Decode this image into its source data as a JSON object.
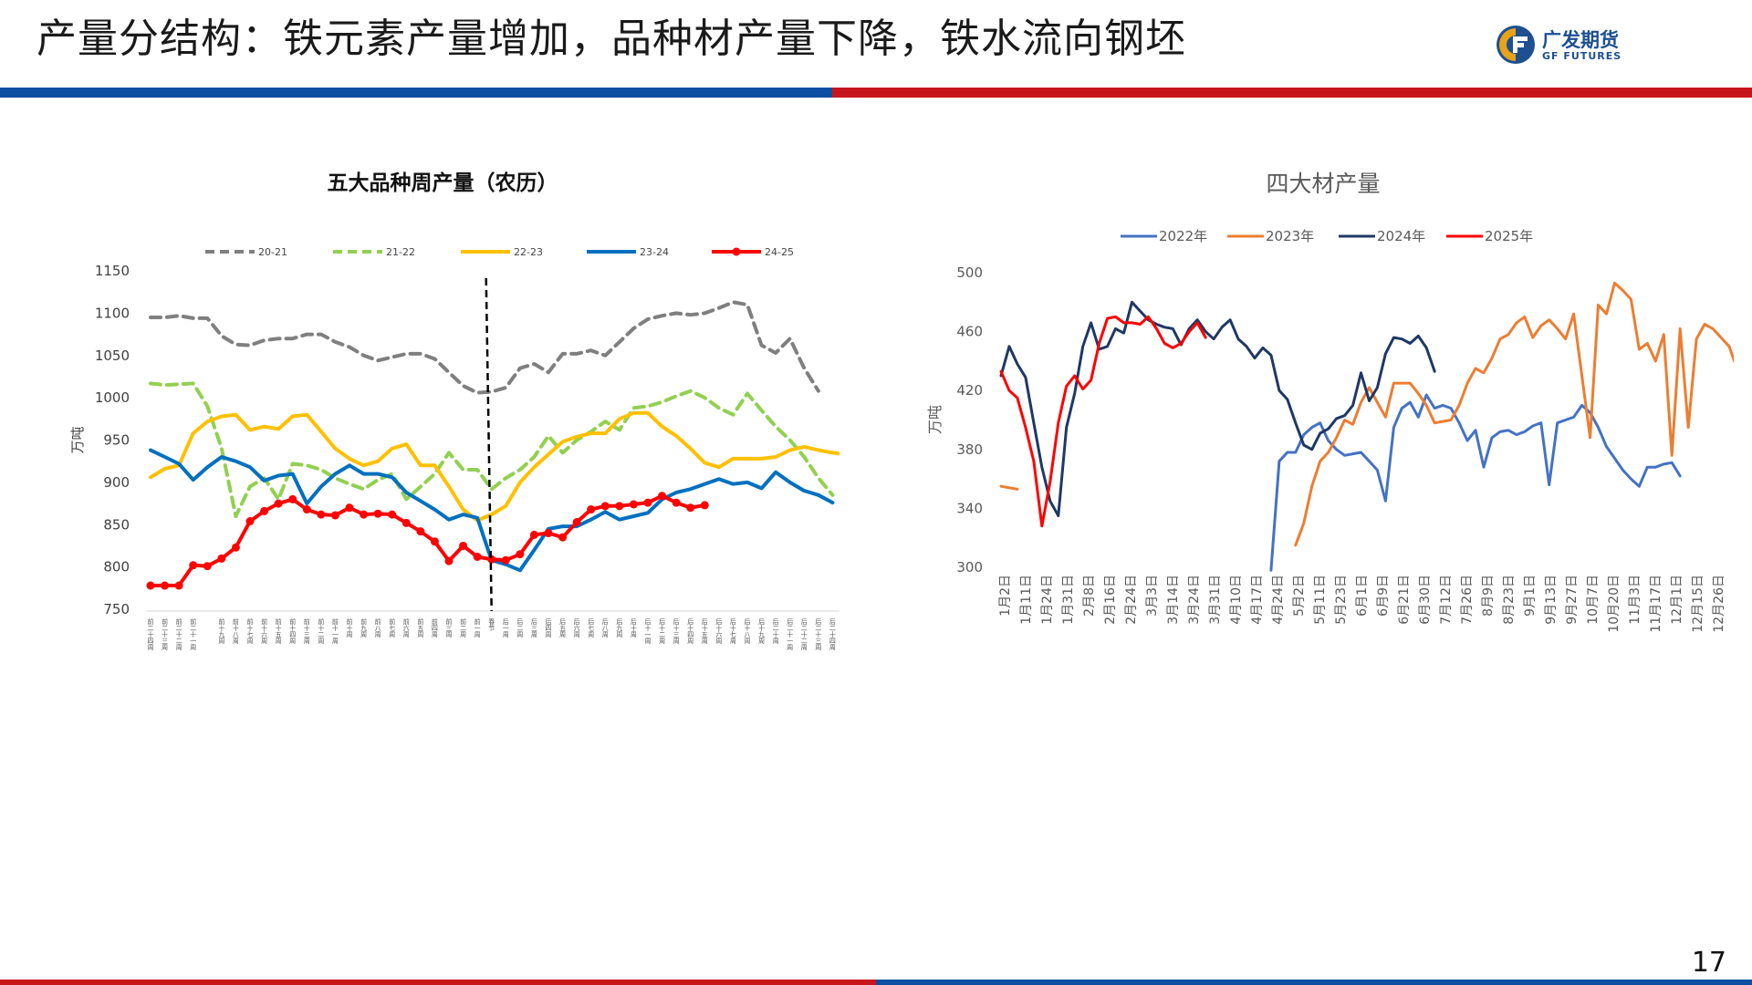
{
  "page": {
    "title": "产量分结构：铁元素产量增加，品种材产量下降，铁水流向钢坯",
    "page_number": "17",
    "logo": {
      "cn": "广发期货",
      "en": "GF FUTURES"
    },
    "colors": {
      "blue": "#0b4ea2",
      "red": "#c8161d"
    }
  },
  "chart_data": [
    {
      "type": "line",
      "title": "五大品种周产量（农历）",
      "ylabel": "万吨",
      "ylim": [
        750,
        1150
      ],
      "yticks": [
        750,
        800,
        850,
        900,
        950,
        1000,
        1050,
        1100,
        1150
      ],
      "categories": [
        "前二十四周",
        "前二十三周",
        "前二十二周",
        "前二十一周",
        "前二十周",
        "前十九周",
        "前十八周",
        "前十七周",
        "前十六周",
        "前十五周",
        "前十四周",
        "前十三周",
        "前十二周",
        "前十一周",
        "前十周",
        "前九周",
        "前八周",
        "前七周",
        "前六周",
        "前五周",
        "前四周",
        "前三周",
        "前二周",
        "前一周",
        "春节",
        "后一周",
        "后二周",
        "后三周",
        "后四周",
        "后五周",
        "后六周",
        "后七周",
        "后八周",
        "后九周",
        "后十周",
        "后十一周",
        "后十二周",
        "后十三周",
        "后十四周",
        "后十五周",
        "后十六周",
        "后十七周",
        "后十八周",
        "后十九周",
        "后二十周",
        "后二十一周",
        "后二十二周",
        "后二十三周",
        "后二十四周",
        "后二十五周"
      ],
      "category_labels_visible": [
        "前二十四周",
        "前二十三周",
        "前二十二周",
        "前二十一周",
        "前十九周",
        "前十八周",
        "前十七周",
        "前十六周",
        "前十五周",
        "前十四周",
        "前十三周",
        "前十二周",
        "前十一周",
        "前十周",
        "前九周",
        "前八周",
        "前七周",
        "前六周",
        "前五周",
        "前四周",
        "前三周",
        "前二周",
        "前一周",
        "春节",
        "后一周",
        "后二周",
        "后三周",
        "后四周",
        "后五周",
        "后六周",
        "后七周",
        "后八周",
        "后九周",
        "后十周",
        "后十一周",
        "后十二周",
        "后十三周",
        "后十四周",
        "后十五周",
        "后十六周",
        "后十七周",
        "后十八周",
        "后十九周",
        "后二十周",
        "后二十一周",
        "后二十二周",
        "后二十三周",
        "后二十四周"
      ],
      "marker_category": "春节",
      "series": [
        {
          "name": "20-21",
          "color": "#7f7f7f",
          "dash": "dash",
          "values": [
            1095,
            1095,
            1097,
            1094,
            1094,
            1073,
            1063,
            1062,
            1068,
            1070,
            1070,
            1075,
            1075,
            1066,
            1060,
            1050,
            1044,
            1048,
            1052,
            1052,
            1046,
            1030,
            1014,
            1006,
            1007,
            1012,
            1035,
            1040,
            1030,
            1052,
            1052,
            1056,
            1050,
            1066,
            1082,
            1093,
            1097,
            1100,
            1098,
            1100,
            1106,
            1113,
            1110,
            1062,
            1053,
            1070,
            1035,
            1008,
            null,
            null
          ]
        },
        {
          "name": "21-22",
          "color": "#92d050",
          "dash": "dash",
          "values": [
            1017,
            1015,
            1016,
            1017,
            990,
            940,
            860,
            895,
            905,
            880,
            922,
            920,
            915,
            905,
            898,
            892,
            903,
            910,
            880,
            895,
            910,
            935,
            915,
            915,
            892,
            905,
            915,
            930,
            955,
            935,
            950,
            960,
            972,
            962,
            988,
            990,
            995,
            1002,
            1008,
            1000,
            988,
            980,
            1005,
            985,
            966,
            950,
            930,
            905,
            885,
            null
          ]
        },
        {
          "name": "22-23",
          "color": "#ffc000",
          "dash": "solid",
          "values": [
            906,
            916,
            920,
            958,
            972,
            978,
            980,
            962,
            966,
            963,
            978,
            980,
            960,
            940,
            928,
            920,
            925,
            940,
            945,
            920,
            920,
            895,
            868,
            855,
            862,
            872,
            900,
            918,
            933,
            948,
            954,
            958,
            958,
            975,
            982,
            982,
            966,
            955,
            940,
            923,
            918,
            928,
            928,
            928,
            930,
            938,
            942,
            938,
            935,
            933
          ]
        },
        {
          "name": "23-24",
          "color": "#0070c0",
          "dash": "solid",
          "values": [
            938,
            930,
            922,
            903,
            918,
            930,
            925,
            918,
            902,
            908,
            910,
            875,
            895,
            910,
            920,
            910,
            910,
            906,
            888,
            878,
            868,
            856,
            862,
            858,
            808,
            803,
            796,
            820,
            845,
            848,
            848,
            856,
            865,
            856,
            860,
            864,
            880,
            888,
            892,
            898,
            904,
            898,
            900,
            893,
            912,
            900,
            890,
            885,
            876,
            null
          ]
        },
        {
          "name": "24-25",
          "color": "#ff0000",
          "dash": "solid",
          "markers": true,
          "values": [
            778,
            778,
            778,
            802,
            801,
            810,
            823,
            854,
            866,
            875,
            880,
            868,
            862,
            861,
            870,
            862,
            863,
            862,
            852,
            842,
            830,
            807,
            825,
            812,
            809,
            808,
            815,
            838,
            840,
            835,
            853,
            868,
            872,
            872,
            874,
            876,
            884,
            876,
            870,
            873,
            null,
            null,
            null,
            null,
            null,
            null,
            null,
            null,
            null,
            null
          ]
        }
      ]
    },
    {
      "type": "line",
      "title": "四大材产量",
      "ylabel": "万吨",
      "ylim": [
        300,
        500
      ],
      "yticks": [
        300,
        340,
        380,
        420,
        460,
        500
      ],
      "x_tick_labels": [
        "1月2日",
        "1月11日",
        "1月24日",
        "1月31日",
        "2月8日",
        "2月16日",
        "2月24日",
        "3月3日",
        "3月14日",
        "3月24日",
        "3月31日",
        "4月10日",
        "4月17日",
        "4月24日",
        "5月2日",
        "5月11日",
        "5月23日",
        "6月1日",
        "6月9日",
        "6月21日",
        "6月30日",
        "7月12日",
        "7月26日",
        "8月9日",
        "8月23日",
        "9月1日",
        "9月13日",
        "9月27日",
        "10月7日",
        "10月20日",
        "11月3日",
        "11月17日",
        "12月1日",
        "12月15日",
        "12月26日"
      ],
      "legend_position": "top",
      "series": [
        {
          "name": "2022年",
          "color": "#4472c4",
          "values": [
            null,
            null,
            null,
            null,
            null,
            null,
            null,
            null,
            null,
            null,
            null,
            null,
            null,
            null,
            null,
            null,
            null,
            null,
            null,
            null,
            null,
            null,
            null,
            null,
            null,
            null,
            null,
            null,
            null,
            null,
            null,
            null,
            null,
            298,
            372,
            378,
            378,
            390,
            395,
            398,
            386,
            380,
            376,
            377,
            378,
            372,
            366,
            345,
            395,
            408,
            412,
            402,
            417,
            408,
            410,
            408,
            398,
            386,
            393,
            368,
            388,
            392,
            393,
            390,
            392,
            396,
            398,
            356,
            398,
            400,
            402,
            410,
            405,
            395,
            382,
            374,
            366,
            360,
            355,
            368,
            368,
            370,
            371,
            362
          ]
        },
        {
          "name": "2023年",
          "color": "#ed7d31",
          "values": [
            355,
            354,
            353,
            null,
            null,
            null,
            null,
            null,
            null,
            null,
            null,
            null,
            null,
            null,
            null,
            null,
            null,
            null,
            null,
            null,
            null,
            null,
            null,
            null,
            null,
            null,
            null,
            null,
            null,
            null,
            null,
            null,
            null,
            null,
            null,
            null,
            315,
            330,
            355,
            372,
            378,
            388,
            400,
            397,
            412,
            422,
            412,
            402,
            425,
            425,
            425,
            418,
            410,
            398,
            399,
            400,
            410,
            425,
            435,
            432,
            442,
            455,
            458,
            466,
            470,
            456,
            464,
            468,
            462,
            455,
            472,
            430,
            388,
            478,
            472,
            493,
            488,
            482,
            448,
            452,
            440,
            458,
            376,
            462,
            395,
            455,
            465,
            462,
            456,
            450,
            434
          ]
        },
        {
          "name": "2024年",
          "color": "#1f3864",
          "values": [
            430,
            450,
            438,
            429,
            398,
            368,
            345,
            335,
            395,
            418,
            450,
            466,
            448,
            450,
            462,
            459,
            480,
            474,
            468,
            465,
            463,
            462,
            451,
            462,
            468,
            460,
            455,
            463,
            468,
            455,
            450,
            442,
            449,
            444,
            420,
            414,
            398,
            383,
            380,
            391,
            394,
            401,
            403,
            410,
            432,
            413,
            422,
            445,
            456,
            455,
            452,
            457,
            449,
            433
          ]
        },
        {
          "name": "2025年",
          "color": "#ff0000",
          "values": [
            433,
            420,
            415,
            395,
            372,
            328,
            358,
            398,
            423,
            430,
            421,
            427,
            452,
            469,
            470,
            466,
            466,
            465,
            470,
            462,
            452,
            449,
            452,
            460,
            466,
            456
          ]
        }
      ]
    }
  ]
}
